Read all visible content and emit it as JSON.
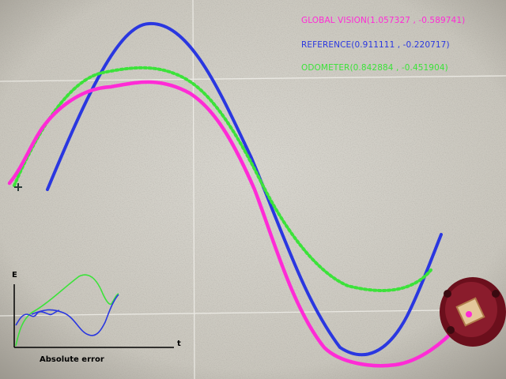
{
  "colors": {
    "global_vision": "#ff2bd6",
    "reference": "#2a37e0",
    "odometer": "#3ce23a"
  },
  "legend": {
    "global_vision": "GLOBAL VISION(1.057327 , -0.589741)",
    "reference": "REFERENCE(0.911111 , -0.220717)",
    "odometer": "ODOMETER(0.842884 , -0.451904)"
  },
  "error_plot": {
    "y_label": "E",
    "x_label": "t",
    "caption": "Absolute error"
  },
  "icons": [
    "robot-icon",
    "crosshair-icon"
  ]
}
